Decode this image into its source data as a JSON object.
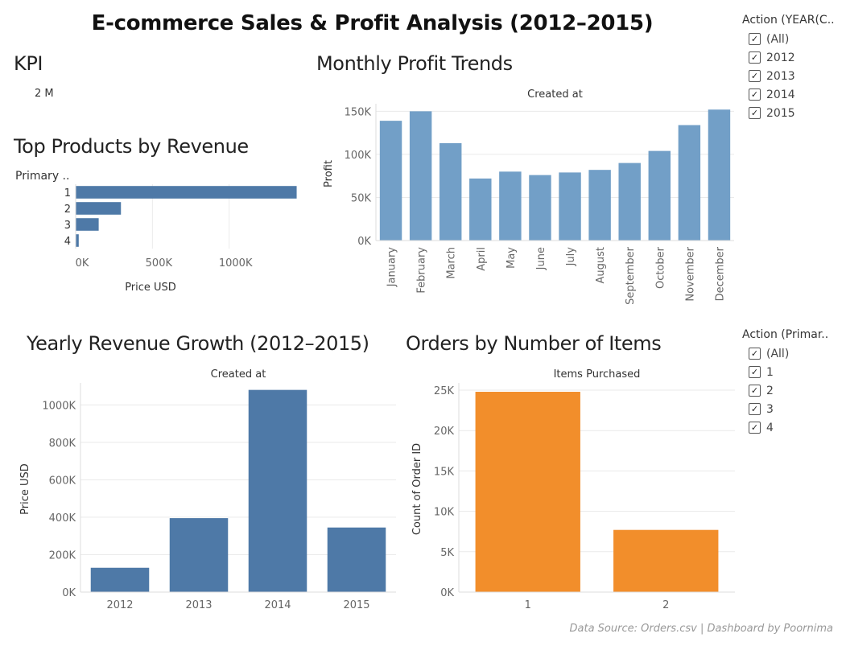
{
  "dashboard": {
    "title": "E-commerce Sales & Profit Analysis (2012–2015)",
    "footer": "Data Source: Orders.csv | Dashboard by Poornima",
    "kpi": {
      "title": "KPI",
      "value": "2 M"
    }
  },
  "filters": {
    "year": {
      "title": "Action (YEAR(C..",
      "items": [
        "(All)",
        "2012",
        "2013",
        "2014",
        "2015"
      ]
    },
    "primary": {
      "title": "Action (Primar..",
      "items": [
        "(All)",
        "1",
        "2",
        "3",
        "4"
      ]
    }
  },
  "colors": {
    "steel_blue": "#4e79a7",
    "light_blue": "#729fc7",
    "orange": "#f28e2b",
    "grid": "#eaeaea"
  },
  "chart_data": [
    {
      "id": "top_products",
      "title": "Top Products by Revenue",
      "type": "bar",
      "orientation": "horizontal",
      "row_header": "Primary ..",
      "categories": [
        "1",
        "2",
        "3",
        "4"
      ],
      "values": [
        1440000,
        295000,
        150000,
        20000
      ],
      "xlabel": "Price USD",
      "xticks": [
        "0K",
        "500K",
        "1000K"
      ],
      "xlim": [
        0,
        1500000
      ],
      "color": "#4e79a7"
    },
    {
      "id": "monthly_profit",
      "title": "Monthly Profit Trends",
      "type": "bar",
      "header": "Created at",
      "categories": [
        "January",
        "February",
        "March",
        "April",
        "May",
        "June",
        "July",
        "August",
        "September",
        "October",
        "November",
        "December"
      ],
      "values": [
        139000,
        150000,
        113000,
        72000,
        80000,
        76000,
        79000,
        82000,
        90000,
        104000,
        134000,
        152000
      ],
      "ylabel": "Profit",
      "yticks": [
        "0K",
        "50K",
        "100K",
        "150K"
      ],
      "ylim": [
        0,
        155000
      ],
      "color": "#729fc7"
    },
    {
      "id": "yearly_revenue",
      "title": "Yearly Revenue Growth (2012–2015)",
      "type": "bar",
      "header": "Created at",
      "categories": [
        "2012",
        "2013",
        "2014",
        "2015"
      ],
      "values": [
        130000,
        395000,
        1080000,
        345000
      ],
      "ylabel": "Price USD",
      "yticks": [
        "0K",
        "200K",
        "400K",
        "600K",
        "800K",
        "1000K"
      ],
      "ylim": [
        0,
        1100000
      ],
      "color": "#4e79a7"
    },
    {
      "id": "orders_items",
      "title": "Orders by Number of Items",
      "type": "bar",
      "header": "Items Purchased",
      "categories": [
        "1",
        "2"
      ],
      "values": [
        24800,
        7700
      ],
      "ylabel": "Count of Order ID",
      "yticks": [
        "0K",
        "5K",
        "10K",
        "15K",
        "20K",
        "25K"
      ],
      "ylim": [
        0,
        25500
      ],
      "color": "#f28e2b"
    }
  ]
}
